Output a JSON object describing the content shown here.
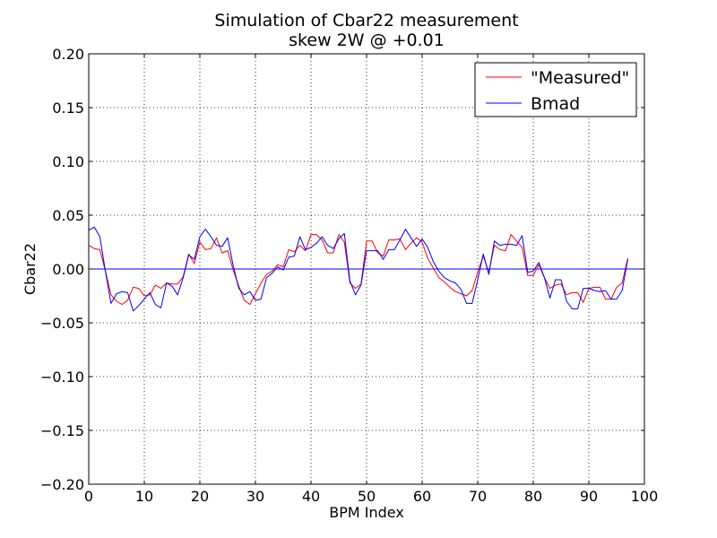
{
  "chart_data": {
    "type": "line",
    "title": "Simulation of Cbar22 measurement",
    "subtitle": "skew 2W @ +0.01",
    "xlabel": "BPM Index",
    "ylabel": "Cbar22",
    "xlim": [
      0,
      100
    ],
    "ylim": [
      -0.2,
      0.2
    ],
    "xticks": [
      0,
      10,
      20,
      30,
      40,
      50,
      60,
      70,
      80,
      90,
      100
    ],
    "xtick_labels": [
      "0",
      "10",
      "20",
      "30",
      "40",
      "50",
      "60",
      "70",
      "80",
      "90",
      "100"
    ],
    "yticks": [
      -0.2,
      -0.15,
      -0.1,
      -0.05,
      0.0,
      0.05,
      0.1,
      0.15,
      0.2
    ],
    "ytick_labels": [
      "−0.20",
      "−0.15",
      "−0.10",
      "−0.05",
      "0.00",
      "0.05",
      "0.10",
      "0.15",
      "0.20"
    ],
    "grid": true,
    "legend_position": "top-right",
    "zero_line_color": "#0000ff",
    "series": [
      {
        "name": "\"Measured\"",
        "color": "#ff0000",
        "x": [
          0,
          1,
          2,
          3,
          4,
          5,
          6,
          7,
          8,
          9,
          10,
          11,
          12,
          13,
          14,
          15,
          16,
          17,
          18,
          19,
          20,
          21,
          22,
          23,
          24,
          25,
          26,
          27,
          28,
          29,
          30,
          31,
          32,
          33,
          34,
          35,
          36,
          37,
          38,
          39,
          40,
          41,
          42,
          43,
          44,
          45,
          46,
          47,
          48,
          49,
          50,
          51,
          52,
          53,
          54,
          55,
          56,
          57,
          58,
          59,
          60,
          61,
          62,
          63,
          64,
          65,
          66,
          67,
          68,
          69,
          70,
          71,
          72,
          73,
          74,
          75,
          76,
          77,
          78,
          79,
          80,
          81,
          82,
          83,
          84,
          85,
          86,
          87,
          88,
          89,
          90,
          91,
          92,
          93,
          94,
          95,
          96,
          97
        ],
        "y": [
          0.022,
          0.019,
          0.018,
          -0.002,
          -0.024,
          -0.03,
          -0.033,
          -0.029,
          -0.017,
          -0.018,
          -0.025,
          -0.024,
          -0.015,
          -0.018,
          -0.013,
          -0.014,
          -0.014,
          -0.007,
          0.014,
          0.005,
          0.025,
          0.018,
          0.019,
          0.029,
          0.015,
          0.017,
          -0.001,
          -0.016,
          -0.029,
          -0.033,
          -0.023,
          -0.013,
          -0.005,
          -0.002,
          0.004,
          0.002,
          0.018,
          0.016,
          0.022,
          0.017,
          0.032,
          0.032,
          0.027,
          0.015,
          0.015,
          0.032,
          0.025,
          -0.013,
          -0.018,
          -0.014,
          0.026,
          0.026,
          0.015,
          0.012,
          0.027,
          0.027,
          0.028,
          0.018,
          0.024,
          0.029,
          0.025,
          0.01,
          0.001,
          -0.008,
          -0.012,
          -0.017,
          -0.021,
          -0.023,
          -0.025,
          -0.02,
          -0.003,
          0.012,
          -0.003,
          0.022,
          0.018,
          0.017,
          0.032,
          0.026,
          0.02,
          -0.006,
          -0.006,
          0.004,
          -0.008,
          -0.018,
          -0.015,
          -0.014,
          -0.024,
          -0.022,
          -0.022,
          -0.031,
          -0.018,
          -0.017,
          -0.017,
          -0.028,
          -0.028,
          -0.017,
          -0.013,
          0.01
        ]
      },
      {
        "name": "Bmad",
        "color": "#0000ff",
        "x": [
          0,
          1,
          2,
          3,
          4,
          5,
          6,
          7,
          8,
          9,
          10,
          11,
          12,
          13,
          14,
          15,
          16,
          17,
          18,
          19,
          20,
          21,
          22,
          23,
          24,
          25,
          26,
          27,
          28,
          29,
          30,
          31,
          32,
          33,
          34,
          35,
          36,
          37,
          38,
          39,
          40,
          41,
          42,
          43,
          44,
          45,
          46,
          47,
          48,
          49,
          50,
          51,
          52,
          53,
          54,
          55,
          56,
          57,
          58,
          59,
          60,
          61,
          62,
          63,
          64,
          65,
          66,
          67,
          68,
          69,
          70,
          71,
          72,
          73,
          74,
          75,
          76,
          77,
          78,
          79,
          80,
          81,
          82,
          83,
          84,
          85,
          86,
          87,
          88,
          89,
          90,
          91,
          92,
          93,
          94,
          95,
          96,
          97
        ],
        "y": [
          0.036,
          0.039,
          0.03,
          -0.002,
          -0.032,
          -0.023,
          -0.021,
          -0.022,
          -0.039,
          -0.034,
          -0.028,
          -0.022,
          -0.033,
          -0.036,
          -0.013,
          -0.016,
          -0.024,
          -0.008,
          0.013,
          0.009,
          0.03,
          0.037,
          0.03,
          0.022,
          0.021,
          0.029,
          0.003,
          -0.018,
          -0.024,
          -0.021,
          -0.029,
          -0.028,
          -0.008,
          -0.004,
          0.002,
          -0.001,
          0.011,
          0.012,
          0.03,
          0.018,
          0.02,
          0.024,
          0.03,
          0.022,
          0.019,
          0.028,
          0.033,
          -0.011,
          -0.024,
          -0.015,
          0.017,
          0.017,
          0.017,
          0.009,
          0.018,
          0.018,
          0.027,
          0.037,
          0.029,
          0.021,
          0.028,
          0.02,
          0.007,
          -0.002,
          -0.008,
          -0.011,
          -0.013,
          -0.019,
          -0.032,
          -0.032,
          -0.01,
          0.014,
          -0.005,
          0.026,
          0.022,
          0.023,
          0.023,
          0.022,
          0.031,
          -0.003,
          -0.002,
          0.006,
          -0.008,
          -0.027,
          -0.01,
          -0.01,
          -0.03,
          -0.037,
          -0.037,
          -0.018,
          -0.018,
          -0.02,
          -0.021,
          -0.02,
          -0.028,
          -0.028,
          -0.02,
          0.009
        ]
      }
    ]
  }
}
